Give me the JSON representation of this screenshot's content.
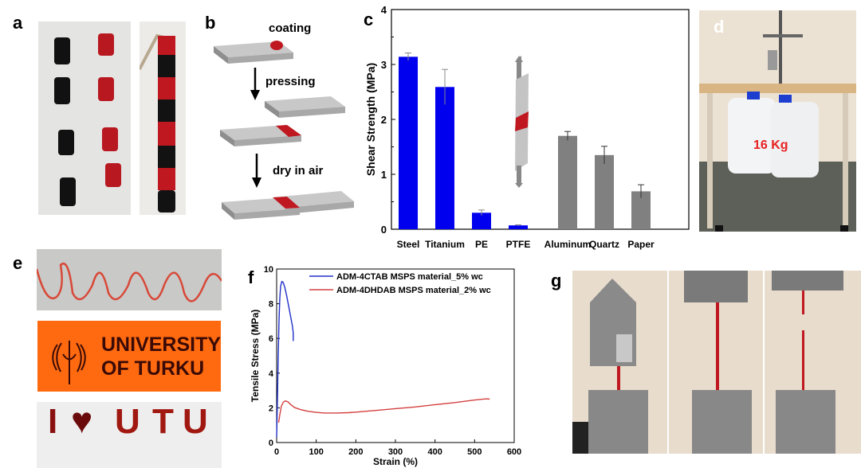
{
  "panels": {
    "a": {
      "label": "a"
    },
    "b": {
      "label": "b",
      "steps": [
        "coating",
        "pressing",
        "dry in air"
      ]
    },
    "c": {
      "label": "c"
    },
    "d": {
      "label": "d",
      "weight_label": "16 Kg"
    },
    "e": {
      "label": "e",
      "logo_line1": "UNIVERSITY",
      "logo_line2": "OF TURKU",
      "letters": [
        "I",
        "U",
        "T",
        "U"
      ]
    },
    "f": {
      "label": "f"
    },
    "g": {
      "label": "g"
    }
  },
  "colors": {
    "blue": "#0000ee",
    "gray": "#808080",
    "red": "#d44040",
    "adhesive_red": "#c81e1e",
    "orange": "#ff6a10"
  },
  "chart_data": [
    {
      "id": "c",
      "type": "bar",
      "title": "",
      "xlabel": "",
      "ylabel": "Shear Strength (MPa)",
      "ylim": [
        0,
        4
      ],
      "yticks": [
        0,
        1,
        2,
        3,
        4
      ],
      "categories": [
        "Steel",
        "Titanium",
        "PE",
        "PTFE",
        "Aluminum",
        "Quartz",
        "Paper"
      ],
      "values": [
        3.14,
        2.59,
        0.3,
        0.07,
        1.7,
        1.35,
        0.69
      ],
      "errors": [
        0.07,
        0.32,
        0.05,
        0.01,
        0.08,
        0.16,
        0.12
      ],
      "bar_colors": [
        "#0000ee",
        "#0000ee",
        "#0000ee",
        "#0000ee",
        "#808080",
        "#808080",
        "#808080"
      ],
      "grid": false
    },
    {
      "id": "f",
      "type": "line",
      "title": "",
      "xlabel": "Strain (%)",
      "ylabel": "Tensile Stress (MPa)",
      "xlim": [
        0,
        600
      ],
      "ylim": [
        0,
        10
      ],
      "xticks": [
        0,
        100,
        200,
        300,
        400,
        500,
        600
      ],
      "yticks": [
        0,
        2,
        4,
        6,
        8,
        10
      ],
      "legend_position": "top-right",
      "grid": false,
      "series": [
        {
          "name": "ADM-4CTAB MSPS material_5% wc",
          "color": "#2030c8",
          "x": [
            0,
            2,
            4,
            6,
            8,
            10,
            13,
            16,
            20,
            25,
            30,
            35,
            40,
            42,
            42
          ],
          "y": [
            0.3,
            2.5,
            5.0,
            7.0,
            8.3,
            9.0,
            9.28,
            9.25,
            9.0,
            8.5,
            7.9,
            7.3,
            6.7,
            6.3,
            5.85
          ]
        },
        {
          "name": "ADM-4DHDAB MSPS material_2% wc",
          "color": "#d44040",
          "x": [
            5,
            8,
            12,
            17,
            22,
            28,
            35,
            45,
            60,
            80,
            100,
            120,
            150,
            180,
            200,
            250,
            300,
            350,
            400,
            450,
            500,
            530,
            538
          ],
          "y": [
            1.15,
            1.6,
            2.1,
            2.33,
            2.4,
            2.35,
            2.2,
            2.02,
            1.9,
            1.8,
            1.74,
            1.7,
            1.7,
            1.72,
            1.75,
            1.85,
            1.95,
            2.05,
            2.18,
            2.3,
            2.45,
            2.52,
            2.5
          ]
        }
      ]
    }
  ]
}
